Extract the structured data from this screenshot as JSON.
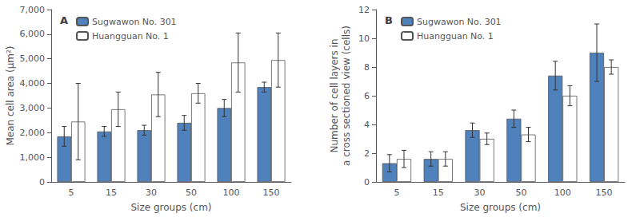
{
  "chart_data": [
    {
      "type": "bar",
      "title": "A",
      "categories": [
        "5",
        "15",
        "30",
        "50",
        "100",
        "150"
      ],
      "xlabel": "Size groups (cm)",
      "ylabel": "Mean cell area (μm²)",
      "ylim": [
        0,
        7000
      ],
      "yticks": [
        0,
        {
          "value": 1000,
          "label": "1,000"
        },
        {
          "value": 2000,
          "label": "2,000"
        },
        {
          "value": 3000,
          "label": "3,000"
        },
        {
          "value": 4000,
          "label": "4,000"
        },
        {
          "value": 5000,
          "label": "5,000"
        },
        {
          "value": 6000,
          "label": "6,000"
        },
        {
          "value": 7000,
          "label": "7,000"
        }
      ],
      "series": [
        {
          "name": "Sugwawon No. 301",
          "color": "#4f81bd",
          "values": [
            1850,
            2050,
            2100,
            2400,
            3000,
            3850
          ],
          "errors": [
            400,
            200,
            200,
            300,
            350,
            200
          ]
        },
        {
          "name": "Huangguan No. 1",
          "color": "#ffffff",
          "values": [
            2450,
            2950,
            3550,
            3600,
            4850,
            4950
          ],
          "errors": [
            1550,
            700,
            900,
            400,
            1200,
            1100
          ]
        }
      ],
      "legend": "upper left",
      "grid": false
    },
    {
      "type": "bar",
      "title": "B",
      "categories": [
        "5",
        "15",
        "30",
        "50",
        "100",
        "150"
      ],
      "xlabel": "Size groups (cm)",
      "ylabel": "Number of cell layers in\na cross sectioned view (cells)",
      "ylim": [
        0,
        12
      ],
      "yticks": [
        0,
        2,
        4,
        6,
        8,
        10,
        12
      ],
      "series": [
        {
          "name": "Sugwawon No. 301",
          "color": "#4f81bd",
          "values": [
            1.3,
            1.6,
            3.6,
            4.4,
            7.4,
            9.0
          ],
          "errors": [
            0.6,
            0.5,
            0.5,
            0.6,
            1.0,
            2.0
          ]
        },
        {
          "name": "Huangguan No. 1",
          "color": "#ffffff",
          "values": [
            1.6,
            1.6,
            3.0,
            3.3,
            6.0,
            8.0
          ],
          "errors": [
            0.6,
            0.5,
            0.4,
            0.5,
            0.7,
            0.5
          ]
        }
      ],
      "legend": "upper left",
      "grid": false
    }
  ]
}
